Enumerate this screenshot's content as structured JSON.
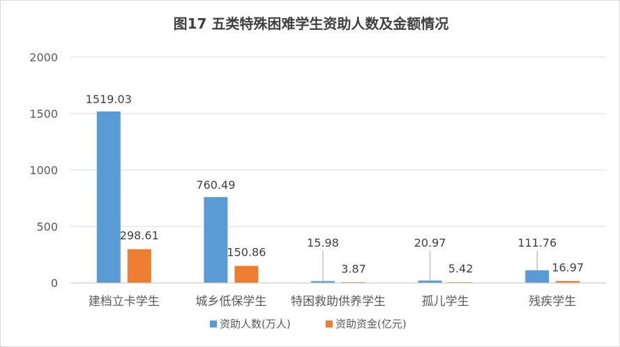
{
  "chart_data": {
    "type": "bar",
    "title": "图17  五类特殊困难学生资助人数及金额情况",
    "categories": [
      "建档立卡学生",
      "城乡低保学生",
      "特困救助供养学生",
      "孤儿学生",
      "残疾学生"
    ],
    "series": [
      {
        "name": "资助人数(万人)",
        "color": "#5B9BD5",
        "values": [
          1519.03,
          760.49,
          15.98,
          20.97,
          111.76
        ],
        "labels": [
          "1519.03",
          "760.49",
          "15.98",
          "20.97",
          "111.76"
        ]
      },
      {
        "name": "资助资金(亿元)",
        "color": "#ED7D31",
        "values": [
          298.61,
          150.86,
          3.87,
          5.42,
          16.97
        ],
        "labels": [
          "298.61",
          "150.86",
          "3.87",
          "5.42",
          "16.97"
        ]
      }
    ],
    "ylim": [
      0,
      2000
    ],
    "yticks": [
      0,
      500,
      1000,
      1500,
      2000
    ],
    "grid": true,
    "legend_position": "bottom"
  }
}
